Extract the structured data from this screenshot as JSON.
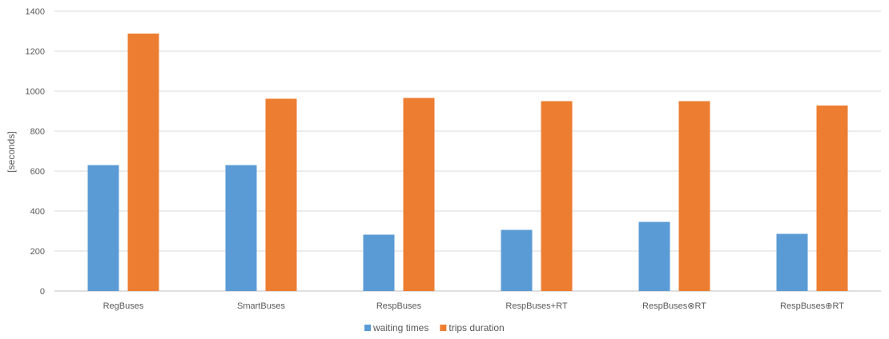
{
  "chart_data": {
    "type": "bar",
    "title": "",
    "xlabel": "",
    "ylabel": "[seconds]",
    "categories": [
      "RegBuses",
      "SmartBuses",
      "RespBuses",
      "RespBuses+RT",
      "RespBuses⊗RT",
      "RespBuses⊕RT"
    ],
    "yticks": [
      "0",
      "200",
      "400",
      "600",
      "800",
      "1000",
      "1200",
      "1400"
    ],
    "ylim": [
      0,
      1400
    ],
    "grid": true,
    "legend_position": "bottom",
    "series": [
      {
        "name": "waiting times",
        "color": "#5B9BD5",
        "values": [
          630,
          630,
          282,
          306,
          346,
          286
        ]
      },
      {
        "name": "trips duration",
        "color": "#ED7D31",
        "values": [
          1288,
          962,
          966,
          950,
          950,
          928
        ]
      }
    ]
  }
}
